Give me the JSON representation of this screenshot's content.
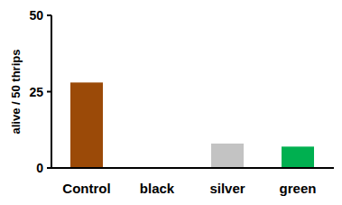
{
  "chart_data": {
    "type": "bar",
    "y_label": "alive / 50 thrips",
    "categories": [
      "Control",
      "black",
      "silver",
      "green"
    ],
    "values": [
      28,
      0,
      8,
      7
    ],
    "colors": [
      "#9b4a08",
      "#000000",
      "#c3c3c3",
      "#00b050"
    ],
    "ylim": [
      0,
      50
    ],
    "yticks": [
      0,
      25,
      50
    ],
    "grid": false
  }
}
